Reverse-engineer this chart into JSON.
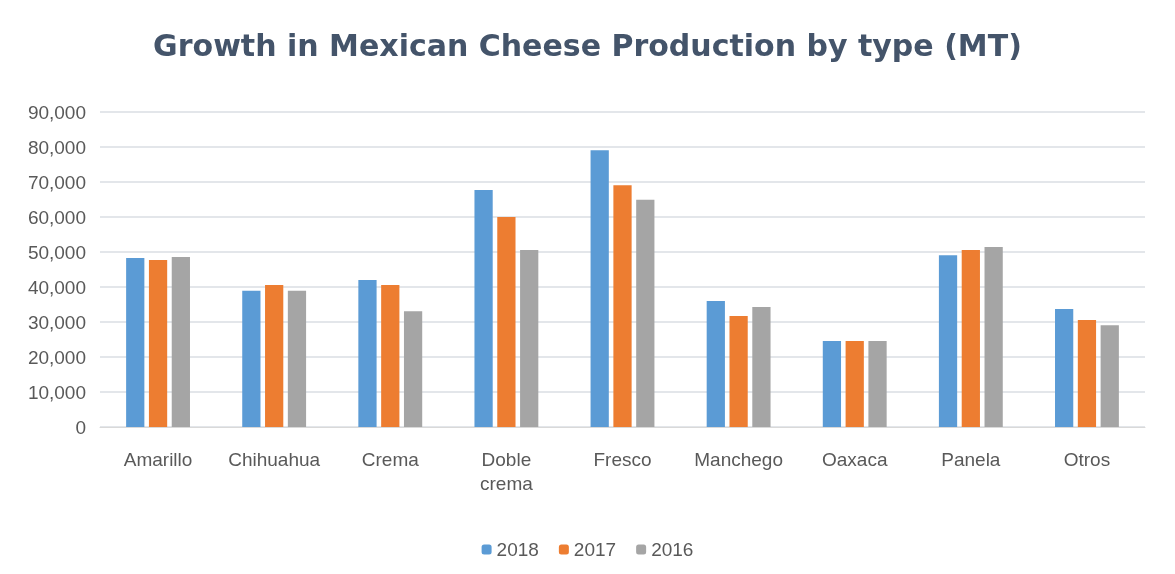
{
  "chart_data": {
    "type": "bar",
    "title": "Growth in Mexican Cheese Production by type (MT)",
    "categories": [
      "Amarillo",
      "Chihuahua",
      "Crema",
      "Doble\ncrema",
      "Fresco",
      "Manchego",
      "Oaxaca",
      "Panela",
      "Otros"
    ],
    "series": [
      {
        "name": "2018",
        "color": "#5b9bd5",
        "values": [
          48300,
          38900,
          42000,
          67700,
          79100,
          36000,
          24600,
          49100,
          33700
        ]
      },
      {
        "name": "2017",
        "color": "#ed7d31",
        "values": [
          47700,
          40600,
          40600,
          60000,
          69100,
          31700,
          24600,
          50600,
          30600
        ]
      },
      {
        "name": "2016",
        "color": "#a5a5a5",
        "values": [
          48600,
          38900,
          33100,
          50600,
          64900,
          34300,
          24600,
          51400,
          29100
        ]
      }
    ],
    "ylim": [
      0,
      90000
    ],
    "yticks": [
      0,
      {
        "value": 10000,
        "label": "10,000"
      },
      {
        "value": 20000,
        "label": "20,000"
      },
      {
        "value": 30000,
        "label": "30,000"
      },
      {
        "value": 40000,
        "label": "40,000"
      },
      {
        "value": 50000,
        "label": "50,000"
      },
      {
        "value": 60000,
        "label": "60,000"
      },
      {
        "value": 70000,
        "label": "70,000"
      },
      {
        "value": 80000,
        "label": "80,000"
      },
      {
        "value": 90000,
        "label": "90,000"
      }
    ],
    "grid": "y",
    "legend": "bottom"
  }
}
